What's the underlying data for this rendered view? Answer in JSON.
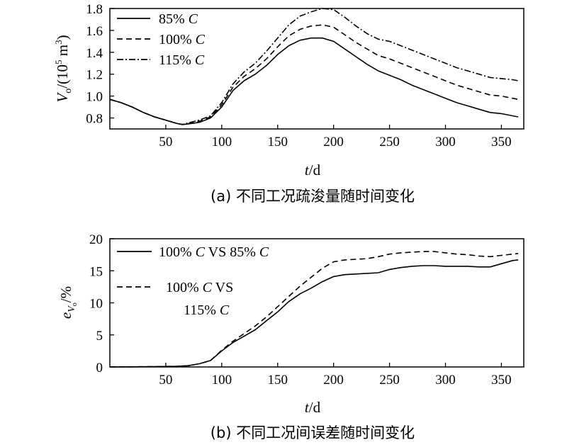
{
  "chart_data": [
    {
      "type": "line",
      "caption": "(a) 不同工况疏浚量随时间变化",
      "ylabel_var": "V",
      "ylabel_sub": "o",
      "ylabel_unit_open": "/(10",
      "ylabel_unit_exp": "5",
      "ylabel_unit_close": " m",
      "ylabel_unit_exp2": "3",
      "ylabel_unit_end": ")",
      "xlabel_var": "t",
      "xlabel_unit": "/d",
      "xlim": [
        0,
        370
      ],
      "ylim": [
        0.7,
        1.8
      ],
      "xticks": [
        50,
        100,
        150,
        200,
        250,
        300,
        350
      ],
      "yticks": [
        0.8,
        1.0,
        1.2,
        1.4,
        1.6,
        1.8
      ],
      "ytick_labels": [
        "0.8",
        "1.0",
        "1.2",
        "1.4",
        "1.6",
        "1.8"
      ],
      "legend_position": "top-left",
      "series": [
        {
          "name_pct": "85% ",
          "name_var": "C",
          "style": "solid",
          "x": [
            0,
            10,
            20,
            30,
            40,
            50,
            60,
            65,
            70,
            80,
            90,
            100,
            110,
            120,
            130,
            140,
            150,
            160,
            170,
            180,
            190,
            200,
            210,
            220,
            230,
            240,
            250,
            260,
            270,
            280,
            290,
            300,
            310,
            320,
            330,
            340,
            350,
            360,
            365
          ],
          "y": [
            0.97,
            0.94,
            0.9,
            0.85,
            0.81,
            0.78,
            0.75,
            0.74,
            0.745,
            0.76,
            0.8,
            0.9,
            1.05,
            1.14,
            1.2,
            1.28,
            1.38,
            1.46,
            1.51,
            1.53,
            1.53,
            1.5,
            1.43,
            1.36,
            1.29,
            1.23,
            1.19,
            1.15,
            1.1,
            1.06,
            1.02,
            0.98,
            0.94,
            0.91,
            0.88,
            0.85,
            0.84,
            0.82,
            0.81
          ]
        },
        {
          "name_pct": "100% ",
          "name_var": "C",
          "style": "dashed",
          "x": [
            0,
            10,
            20,
            30,
            40,
            50,
            60,
            65,
            70,
            80,
            90,
            100,
            110,
            120,
            130,
            140,
            150,
            160,
            170,
            180,
            190,
            200,
            210,
            220,
            230,
            240,
            250,
            260,
            270,
            280,
            290,
            300,
            310,
            320,
            330,
            340,
            350,
            360,
            365
          ],
          "y": [
            0.97,
            0.94,
            0.9,
            0.85,
            0.81,
            0.78,
            0.75,
            0.74,
            0.75,
            0.77,
            0.81,
            0.92,
            1.08,
            1.18,
            1.25,
            1.34,
            1.45,
            1.55,
            1.61,
            1.64,
            1.65,
            1.63,
            1.56,
            1.49,
            1.43,
            1.37,
            1.34,
            1.3,
            1.26,
            1.22,
            1.18,
            1.14,
            1.1,
            1.07,
            1.04,
            1.01,
            1.0,
            0.98,
            0.97
          ]
        },
        {
          "name_pct": "115% ",
          "name_var": "C",
          "style": "dashdot",
          "x": [
            0,
            10,
            20,
            30,
            40,
            50,
            60,
            65,
            70,
            80,
            90,
            100,
            110,
            120,
            130,
            140,
            150,
            160,
            170,
            180,
            190,
            200,
            210,
            220,
            230,
            240,
            250,
            260,
            270,
            280,
            290,
            300,
            310,
            320,
            330,
            340,
            350,
            360,
            365
          ],
          "y": [
            0.97,
            0.94,
            0.9,
            0.85,
            0.81,
            0.78,
            0.75,
            0.74,
            0.755,
            0.78,
            0.82,
            0.94,
            1.11,
            1.22,
            1.3,
            1.41,
            1.53,
            1.65,
            1.73,
            1.77,
            1.8,
            1.79,
            1.72,
            1.64,
            1.57,
            1.52,
            1.5,
            1.46,
            1.42,
            1.38,
            1.34,
            1.3,
            1.26,
            1.23,
            1.2,
            1.17,
            1.16,
            1.15,
            1.14
          ]
        }
      ]
    },
    {
      "type": "line",
      "caption": "(b) 不同工况间误差随时间变化",
      "ylabel_var": "e",
      "ylabel_sub": "V",
      "ylabel_subsub": "o",
      "ylabel_unit": "/%",
      "xlabel_var": "t",
      "xlabel_unit": "/d",
      "xlim": [
        0,
        370
      ],
      "ylim": [
        0,
        20
      ],
      "xticks": [
        50,
        100,
        150,
        200,
        250,
        300,
        350
      ],
      "yticks": [
        0,
        5,
        10,
        15,
        20
      ],
      "ytick_labels": [
        "0",
        "5",
        "10",
        "15",
        "20"
      ],
      "legend_position": "top-left",
      "series": [
        {
          "name_pct": "100% ",
          "name_var": "C",
          "name_rest": " VS 85% ",
          "name_var2": "C",
          "style": "solid",
          "x": [
            0,
            20,
            40,
            60,
            70,
            80,
            90,
            100,
            110,
            120,
            130,
            140,
            150,
            160,
            170,
            180,
            190,
            200,
            210,
            220,
            230,
            240,
            250,
            260,
            270,
            280,
            290,
            300,
            310,
            320,
            330,
            340,
            350,
            360,
            365
          ],
          "y": [
            0,
            0.02,
            0.05,
            0.1,
            0.2,
            0.5,
            1.0,
            2.5,
            3.8,
            4.8,
            5.8,
            7.2,
            8.6,
            10.2,
            11.4,
            12.3,
            13.3,
            14.1,
            14.4,
            14.5,
            14.6,
            14.7,
            15.2,
            15.5,
            15.7,
            15.8,
            15.8,
            15.7,
            15.7,
            15.7,
            15.6,
            15.6,
            16.1,
            16.6,
            16.7
          ]
        },
        {
          "name_pct": "100% ",
          "name_var": "C",
          "name_rest": " VS",
          "name_line2": "115% ",
          "name_var2": "C",
          "style": "dashed",
          "x": [
            0,
            20,
            40,
            60,
            70,
            80,
            90,
            100,
            110,
            120,
            130,
            140,
            150,
            160,
            170,
            180,
            190,
            200,
            210,
            220,
            230,
            240,
            250,
            260,
            270,
            280,
            290,
            300,
            310,
            320,
            330,
            340,
            350,
            360,
            365
          ],
          "y": [
            0,
            0.02,
            0.05,
            0.1,
            0.2,
            0.5,
            1.0,
            2.6,
            4.0,
            5.2,
            6.4,
            7.8,
            9.4,
            11.0,
            12.6,
            14.0,
            15.4,
            16.4,
            16.7,
            16.8,
            16.9,
            17.2,
            17.6,
            17.8,
            17.9,
            18.0,
            18.0,
            17.8,
            17.6,
            17.5,
            17.3,
            17.2,
            17.4,
            17.6,
            17.7
          ]
        }
      ]
    }
  ]
}
